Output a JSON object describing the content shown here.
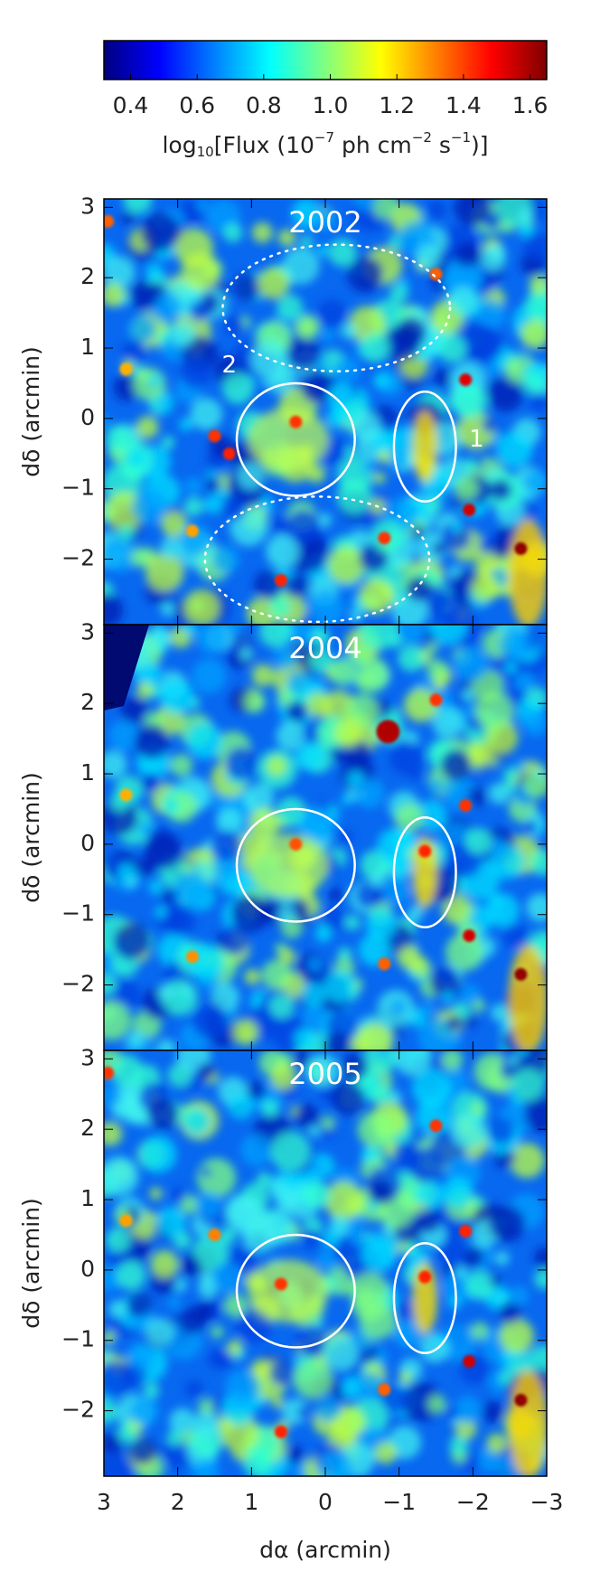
{
  "chart_data": {
    "type": "heatmap",
    "colorbar_lim": [
      0.32,
      1.65
    ],
    "colorbar_ticks": [
      0.4,
      0.6,
      0.8,
      {
        "value": 1,
        "label": "1.0"
      },
      1.2,
      1.4,
      1.6
    ],
    "colorbar_colors": [
      "#00007f",
      "#0000ff",
      "#0080ff",
      "#00ffff",
      "#80ff80",
      "#ffff00",
      "#ff8000",
      "#ff0000",
      "#7f0000"
    ],
    "colorbar_label_parts": [
      "log",
      "10",
      "[Flux (10",
      "−7",
      " ph cm",
      "−2",
      " s",
      "−1",
      ")]"
    ],
    "xlabel": "dα (arcmin)",
    "ylabel": "dδ (arcmin)",
    "xlim": [
      3,
      -3
    ],
    "ylim": [
      -2.93,
      3.12
    ],
    "xticks": [
      3,
      2,
      1,
      0,
      {
        "value": -1,
        "label": "−1"
      },
      {
        "value": -2,
        "label": "−2"
      },
      {
        "value": -3,
        "label": "−3"
      }
    ],
    "yticks": [
      {
        "value": -2,
        "label": "−2"
      },
      {
        "value": -1,
        "label": "−1"
      },
      0,
      1,
      2,
      3
    ],
    "panels": [
      {
        "title": "2002",
        "region_labels": [
          "2",
          "1"
        ]
      },
      {
        "title": "2004"
      },
      {
        "title": "2005"
      }
    ]
  }
}
